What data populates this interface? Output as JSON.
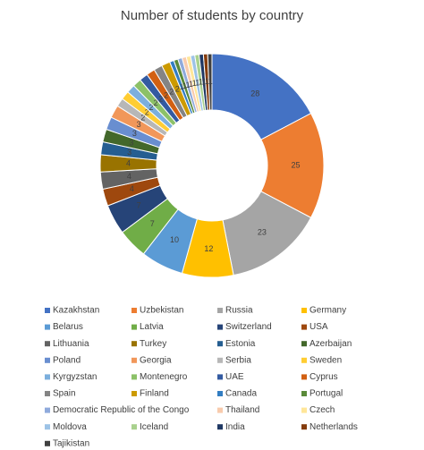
{
  "chart_data": {
    "type": "pie",
    "donut": true,
    "title": "Number of students by country",
    "categories": [
      "Kazakhstan",
      "Uzbekistan",
      "Russia",
      "Germany",
      "Belarus",
      "Latvia",
      "Switzerland",
      "USA",
      "Lithuania",
      "Turkey",
      "Estonia",
      "Azerbaijan",
      "Poland",
      "Georgia",
      "Serbia",
      "Sweden",
      "Kyrgyzstan",
      "Montenegro",
      "UAE",
      "Cyprus",
      "Spain",
      "Finland",
      "Canada",
      "Portugal",
      "Democratic Republic of the Congo",
      "Thailand",
      "Czech",
      "Moldova",
      "Iceland",
      "India",
      "Netherlands",
      "Tajikistan"
    ],
    "values": [
      28,
      25,
      23,
      12,
      10,
      7,
      7,
      4,
      4,
      4,
      3,
      3,
      3,
      3,
      2,
      2,
      2,
      2,
      2,
      2,
      2,
      2,
      1,
      1,
      1,
      1,
      1,
      1,
      1,
      1,
      1,
      1
    ],
    "colors": [
      "#4472c4",
      "#ed7d31",
      "#a5a5a5",
      "#ffc000",
      "#5b9bd5",
      "#70ad47",
      "#264478",
      "#9e480e",
      "#636363",
      "#997300",
      "#255e91",
      "#43682b",
      "#698ed0",
      "#f1975a",
      "#b7b7b7",
      "#ffcd33",
      "#7cafdd",
      "#8cc168",
      "#335aa1",
      "#d26012",
      "#848484",
      "#cc9a00",
      "#327dc2",
      "#5a8a39",
      "#8faadc",
      "#f8cbad",
      "#ffe699",
      "#9dc3e6",
      "#a9d18e",
      "#1f3864",
      "#843c0c",
      "#404040"
    ]
  }
}
